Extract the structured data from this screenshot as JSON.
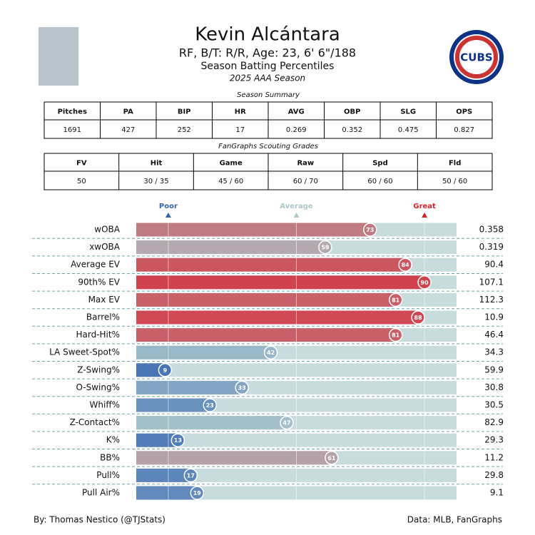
{
  "header": {
    "name": "Kevin Alcántara",
    "subtitle": "RF, B/T: R/R, Age: 23, 6' 6\"/188",
    "title": "Season Batting Percentiles",
    "season": "2025 AAA Season",
    "logo_text": "CUBS"
  },
  "summary_table": {
    "caption": "Season Summary",
    "headers": [
      "Pitches",
      "PA",
      "BIP",
      "HR",
      "AVG",
      "OBP",
      "SLG",
      "OPS"
    ],
    "rows": [
      [
        "1691",
        "427",
        "252",
        "17",
        "0.269",
        "0.352",
        "0.475",
        "0.827"
      ]
    ]
  },
  "grades_table": {
    "caption": "FanGraphs Scouting Grades",
    "headers": [
      "FV",
      "Hit",
      "Game",
      "Raw",
      "Spd",
      "Fld"
    ],
    "rows": [
      [
        "50",
        "30 / 35",
        "45 / 60",
        "60 / 70",
        "60 / 60",
        "50 / 60"
      ]
    ]
  },
  "chart_data": {
    "type": "percentile_bar",
    "categories": [
      "wOBA",
      "xwOBA",
      "Average EV",
      "90th% EV",
      "Max EV",
      "Barrel%",
      "Hard-Hit%",
      "LA Sweet-Spot%",
      "Z-Swing%",
      "O-Swing%",
      "Whiff%",
      "Z-Contact%",
      "K%",
      "BB%",
      "Pull%",
      "Pull Air%"
    ],
    "values": [
      73,
      59,
      84,
      90,
      81,
      88,
      81,
      42,
      9,
      33,
      23,
      47,
      13,
      61,
      17,
      19
    ],
    "stat_values": [
      0.358,
      0.319,
      90.4,
      107.1,
      112.3,
      10.9,
      46.4,
      34.3,
      59.9,
      30.8,
      30.5,
      82.9,
      29.3,
      11.2,
      29.8,
      9.1
    ],
    "xlim": [
      0,
      100
    ],
    "xticks": [
      {
        "value": 10,
        "label": "Poor",
        "color": "#3463b3"
      },
      {
        "value": 50,
        "label": "Average",
        "color": "#a9c7c9"
      },
      {
        "value": 90,
        "label": "Great",
        "color": "#d9212d"
      }
    ],
    "colormap": [
      "#3463b3",
      "#abc7cb",
      "#d9212d"
    ],
    "track_color": "#c8dcdd"
  },
  "footer": {
    "left": "By: Thomas Nestico (@TJStats)",
    "right": "Data: MLB, FanGraphs"
  }
}
